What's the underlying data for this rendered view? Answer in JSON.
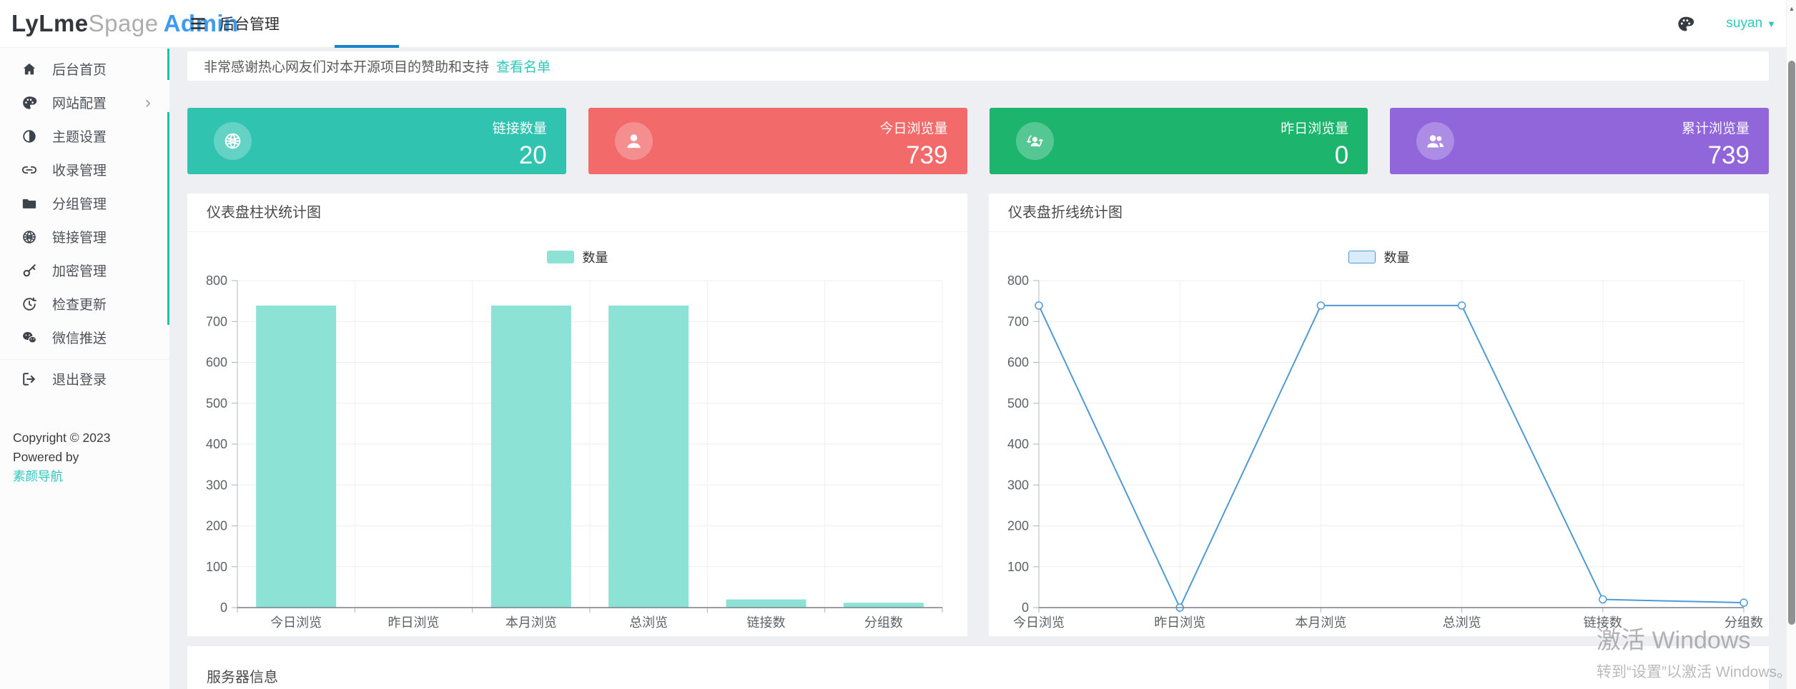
{
  "header": {
    "logo": {
      "part1": "LyLme",
      "part2": "Spage",
      "part3": "Admin"
    },
    "title": "后台管理",
    "user": "suyan",
    "accent_blue": "#1a83c9"
  },
  "sidebar": {
    "items": [
      {
        "label": "后台首页",
        "icon": "home-icon"
      },
      {
        "label": "网站配置",
        "icon": "palette-icon",
        "has_submenu": true
      },
      {
        "label": "主题设置",
        "icon": "theme-icon"
      },
      {
        "label": "收录管理",
        "icon": "link-icon"
      },
      {
        "label": "分组管理",
        "icon": "folder-icon"
      },
      {
        "label": "链接管理",
        "icon": "globe-icon"
      },
      {
        "label": "加密管理",
        "icon": "key-icon"
      },
      {
        "label": "检查更新",
        "icon": "update-icon"
      },
      {
        "label": "微信推送",
        "icon": "wechat-icon"
      },
      {
        "label": "退出登录",
        "icon": "logout-icon",
        "divided": true
      }
    ],
    "copyright": "Copyright © 2023 Powered by",
    "copyright_link": "素颜导航",
    "scrollbar_color": "#1fc2ac"
  },
  "notice": {
    "text": "非常感谢热心网友们对本开源项目的赞助和支持",
    "link": "查看名单",
    "link_color": "#2ec8ba"
  },
  "stat_cards": [
    {
      "label": "链接数量",
      "value": "20",
      "color": "#30c3b0",
      "icon": "globe-icon"
    },
    {
      "label": "今日浏览量",
      "value": "739",
      "color": "#f26a6a",
      "icon": "user-icon"
    },
    {
      "label": "昨日浏览量",
      "value": "0",
      "color": "#1db56e",
      "icon": "user-sync-icon"
    },
    {
      "label": "累计浏览量",
      "value": "739",
      "color": "#9166db",
      "icon": "users-icon"
    }
  ],
  "chart_data": [
    {
      "type": "bar",
      "title": "仪表盘柱状统计图",
      "legend": "数量",
      "categories": [
        "今日浏览",
        "昨日浏览",
        "本月浏览",
        "总浏览",
        "链接数",
        "分组数"
      ],
      "values": [
        739,
        0,
        739,
        739,
        20,
        12
      ],
      "xlabel": "",
      "ylabel": "",
      "ylim": [
        0,
        800
      ],
      "ytick_step": 100,
      "grid": true,
      "legend_position": "top-center",
      "bar_color": "#8de2d6"
    },
    {
      "type": "line",
      "title": "仪表盘折线统计图",
      "legend": "数量",
      "categories": [
        "今日浏览",
        "昨日浏览",
        "本月浏览",
        "总浏览",
        "链接数",
        "分组数"
      ],
      "values": [
        739,
        0,
        739,
        739,
        20,
        12
      ],
      "xlabel": "",
      "ylabel": "",
      "ylim": [
        0,
        800
      ],
      "ytick_step": 100,
      "grid": true,
      "legend_position": "top-center",
      "line_color": "#4e9ad8",
      "marker": "hollow-circle"
    }
  ],
  "server_card": {
    "title": "服务器信息"
  },
  "watermark": {
    "line1": "激活 Windows",
    "line2": "转到“设置”以激活 Windows。"
  }
}
